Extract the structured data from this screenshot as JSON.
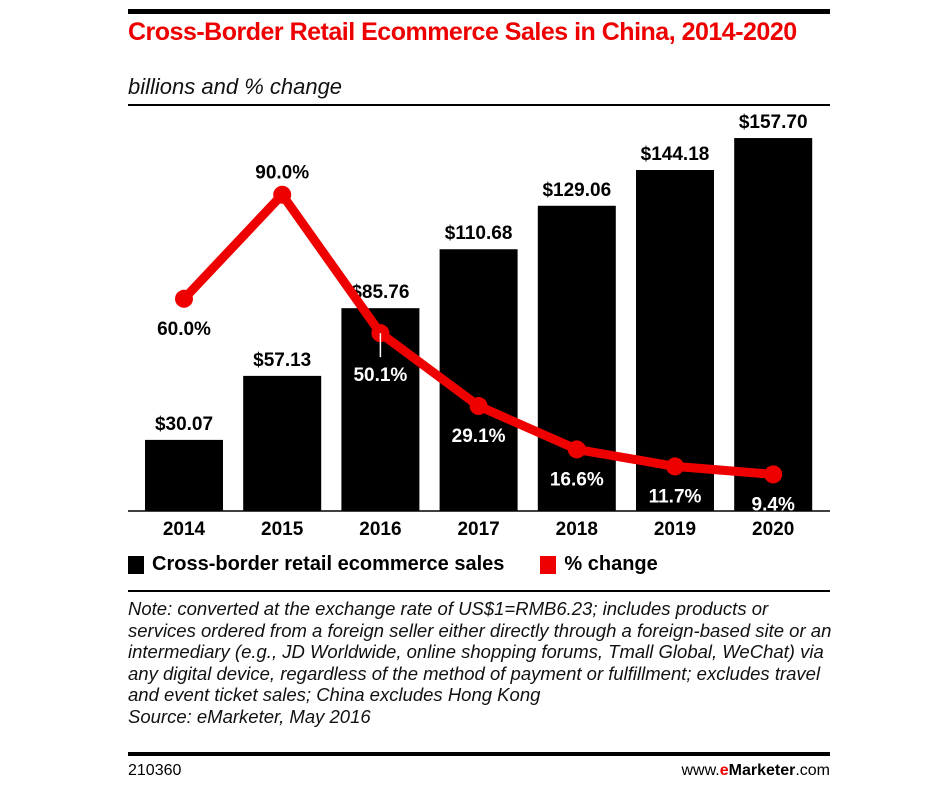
{
  "chart_data": {
    "type": "bar",
    "title": "Cross-Border Retail Ecommerce Sales in China, 2014-2020",
    "subtitle": "billions and % change",
    "categories": [
      "2014",
      "2015",
      "2016",
      "2017",
      "2018",
      "2019",
      "2020"
    ],
    "series": [
      {
        "name": "Cross-border retail ecommerce sales",
        "type": "bar",
        "values": [
          30.07,
          57.13,
          85.76,
          110.68,
          129.06,
          144.18,
          157.7
        ],
        "labels": [
          "$30.07",
          "$57.13",
          "$85.76",
          "$110.68",
          "$129.06",
          "$144.18",
          "$157.70"
        ],
        "color": "#000000"
      },
      {
        "name": "% change",
        "type": "line",
        "values": [
          60.0,
          90.0,
          50.1,
          29.1,
          16.6,
          11.7,
          9.4
        ],
        "labels": [
          "60.0%",
          "90.0%",
          "50.1%",
          "29.1%",
          "16.6%",
          "11.7%",
          "9.4%"
        ],
        "color": "#ee0000"
      }
    ],
    "grid": false,
    "legend": "bottom"
  },
  "note": "Note: converted at the exchange rate of US$1=RMB6.23; includes products or services ordered from a foreign seller either directly through a foreign-based site or an intermediary (e.g., JD Worldwide, online shopping forums, Tmall Global, WeChat) via any digital device, regardless of the method of payment or fulfillment; excludes travel and event ticket sales; China excludes Hong Kong",
  "source": "Source: eMarketer, May 2016",
  "footer": {
    "id": "210360",
    "site_prefix": "www.",
    "site_brand_e": "e",
    "site_brand_rest": "Marketer",
    "site_suffix": ".com"
  }
}
